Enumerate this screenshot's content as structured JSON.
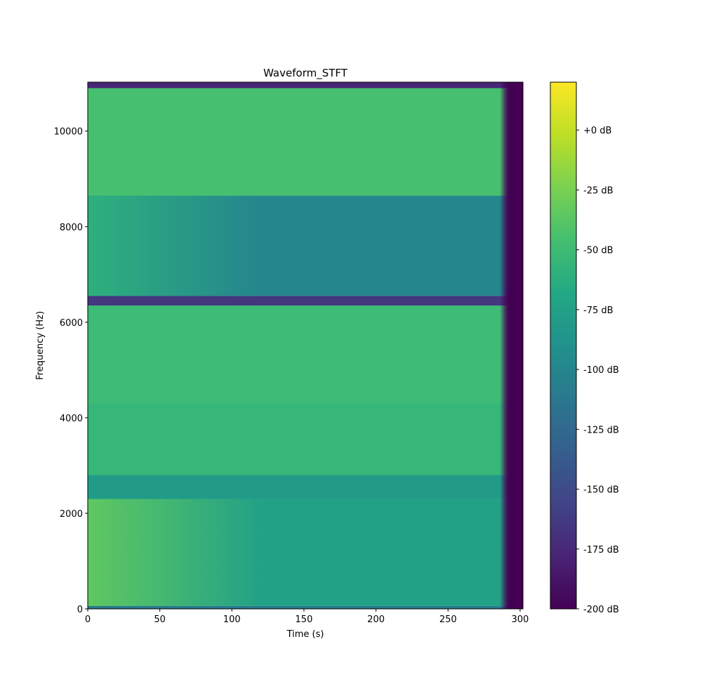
{
  "chart_data": {
    "type": "heatmap",
    "title": "Waveform_STFT",
    "xlabel": "Time (s)",
    "ylabel": "Frequency (Hz)",
    "xlim": [
      0,
      302
    ],
    "ylim": [
      0,
      11025
    ],
    "xticks": [
      0,
      50,
      100,
      150,
      200,
      250,
      300
    ],
    "yticks": [
      0,
      2000,
      4000,
      6000,
      8000,
      10000
    ],
    "colorbar": {
      "colormap": "viridis",
      "vmin": -200,
      "vmax": 20,
      "ticks": [
        -200,
        -175,
        -150,
        -125,
        -100,
        -75,
        -50,
        -25,
        0
      ],
      "tick_labels": [
        "-200 dB",
        "-175 dB",
        "-150 dB",
        "-125 dB",
        "-100 dB",
        "-75 dB",
        "-50 dB",
        "-25 dB",
        "+0 dB"
      ]
    },
    "bands": [
      {
        "f_low": 0,
        "f_high": 60,
        "level_db": -110
      },
      {
        "f_low": 60,
        "f_high": 2300,
        "level_db": -75,
        "early_level_db": -35
      },
      {
        "f_low": 2300,
        "f_high": 2800,
        "level_db": -80
      },
      {
        "f_low": 2800,
        "f_high": 4300,
        "level_db": -55
      },
      {
        "f_low": 4300,
        "f_high": 6350,
        "level_db": -50
      },
      {
        "f_low": 6350,
        "f_high": 6550,
        "level_db": -165
      },
      {
        "f_low": 6550,
        "f_high": 8650,
        "level_db": -100,
        "early_level_db": -60
      },
      {
        "f_low": 8650,
        "f_high": 10900,
        "level_db": -45
      },
      {
        "f_low": 10900,
        "f_high": 11025,
        "level_db": -175
      }
    ],
    "signal_end_s": 292,
    "grid": false
  }
}
